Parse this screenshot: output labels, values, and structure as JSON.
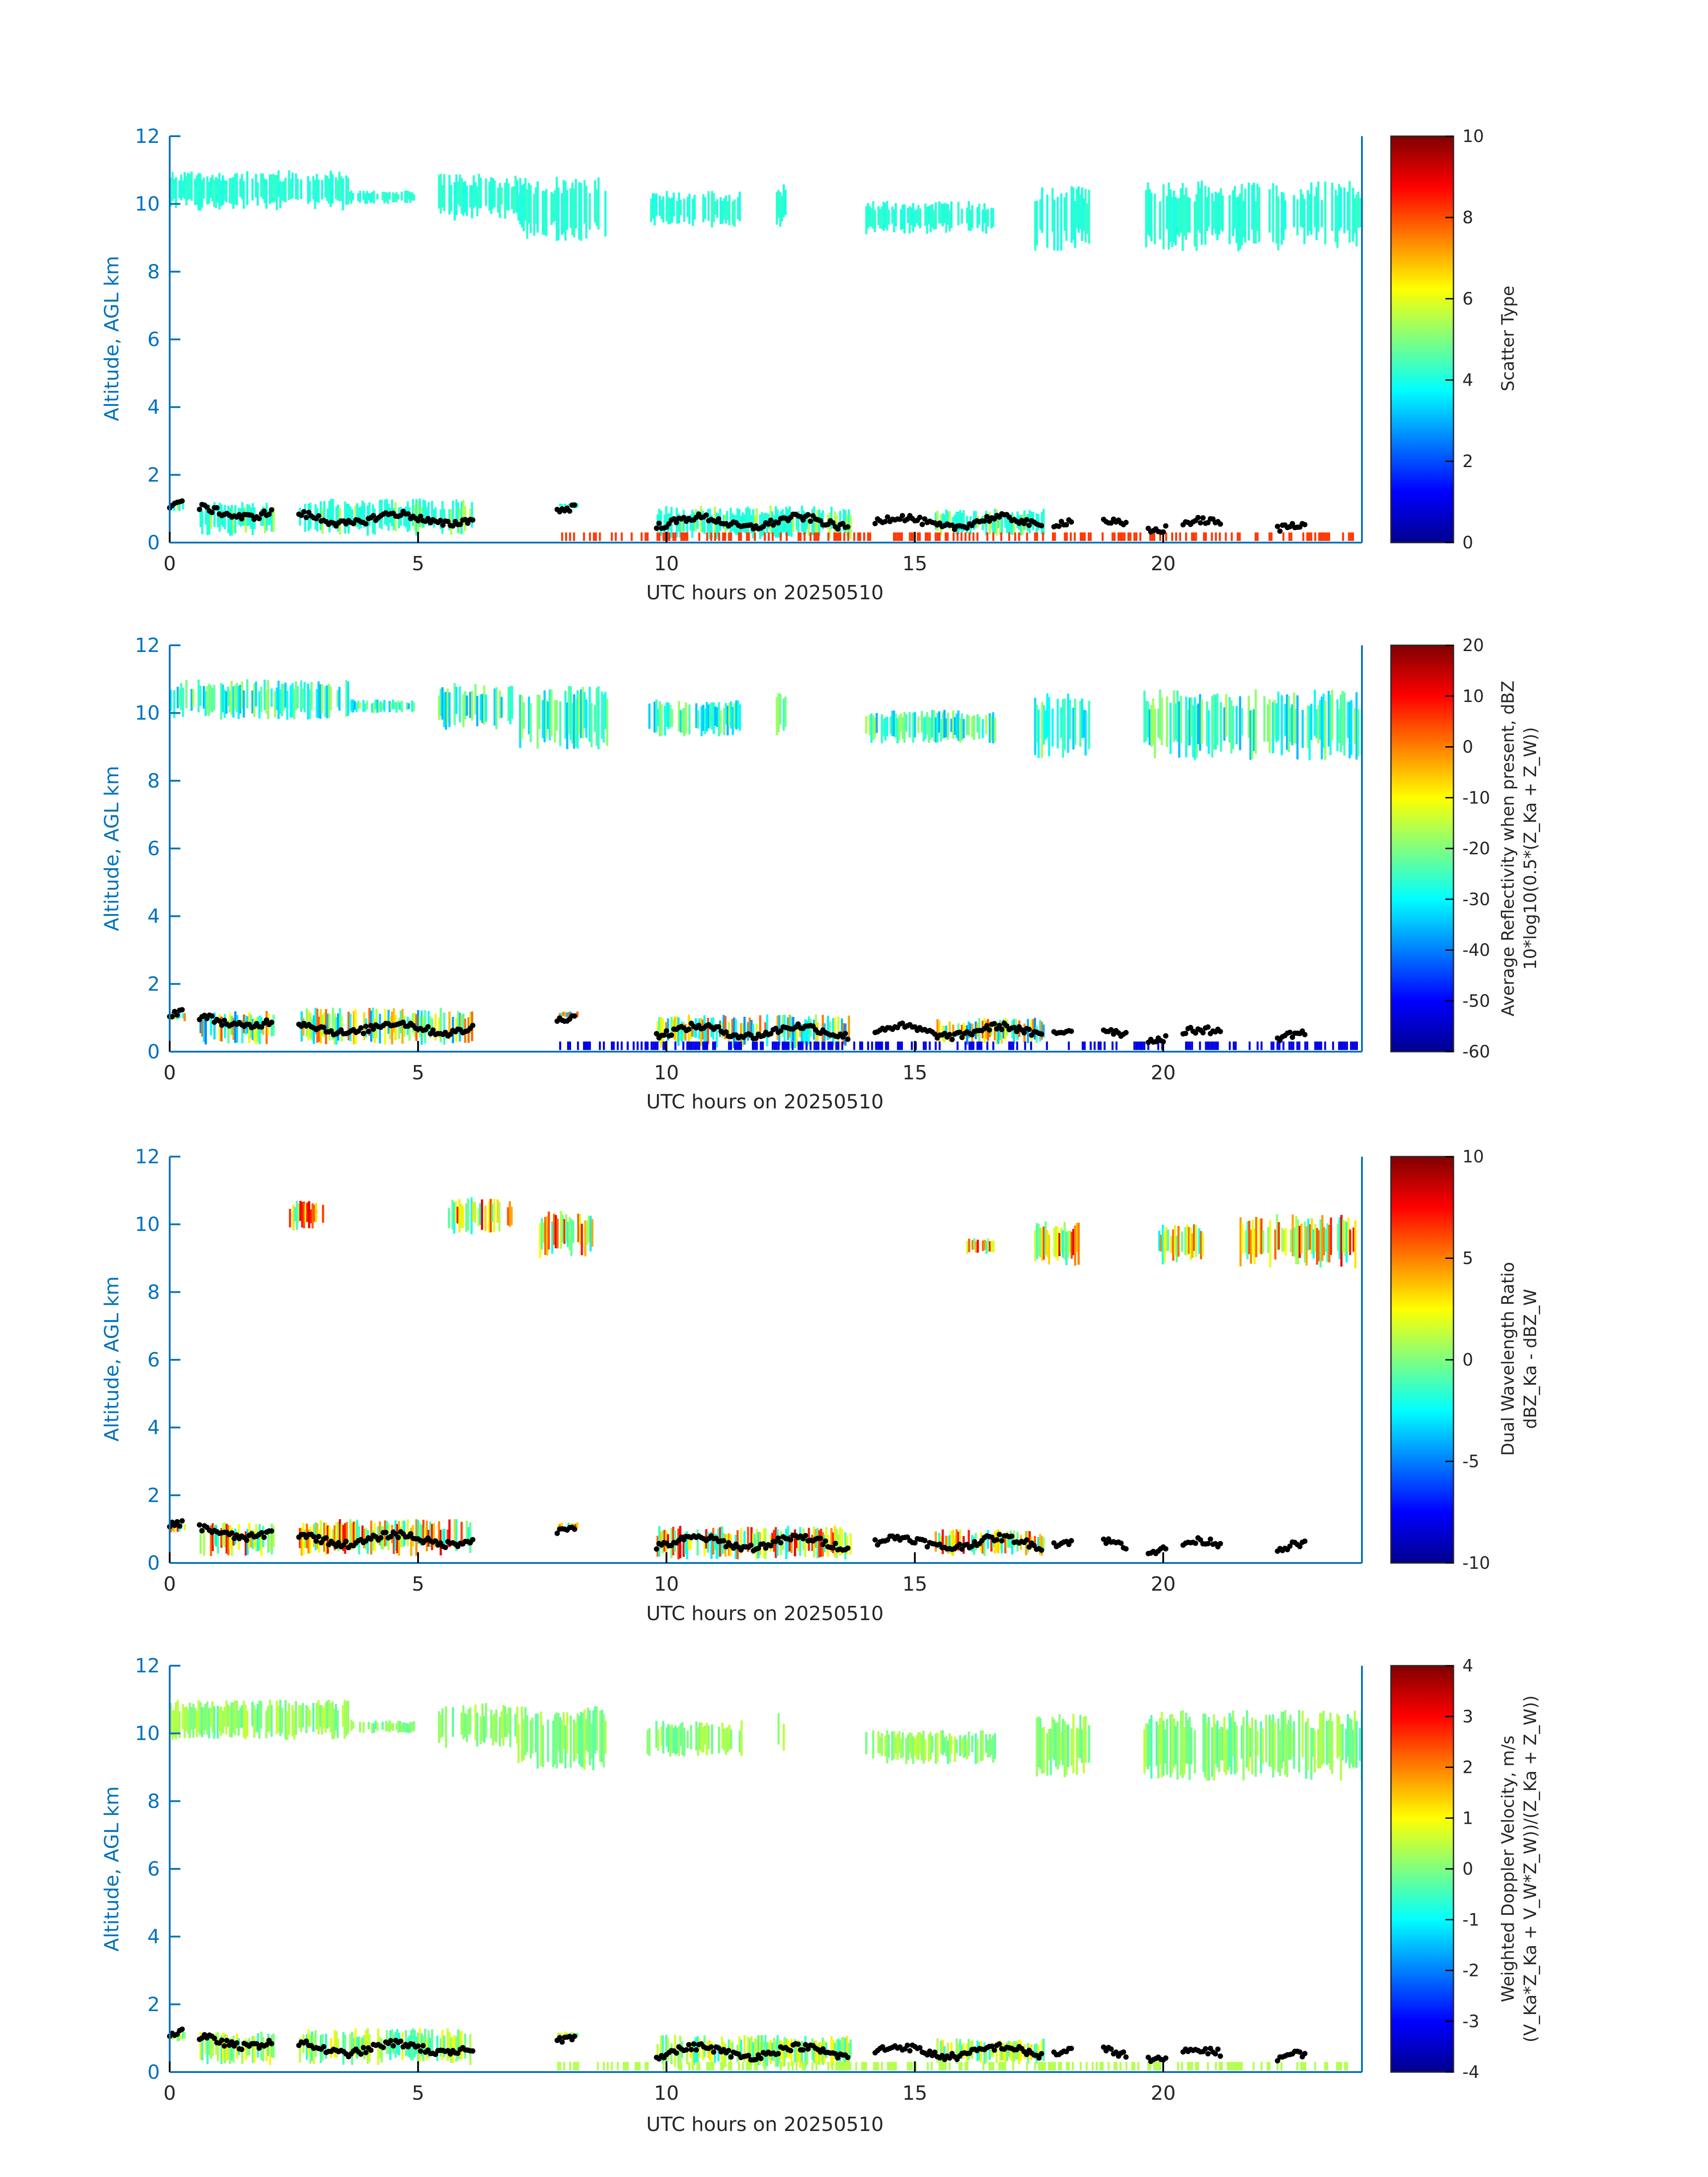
{
  "chart_data": [
    {
      "type": "heatmap",
      "xlabel": "UTC hours on 20250510",
      "ylabel": "Altitude, AGL km",
      "xlim": [
        0,
        24
      ],
      "ylim": [
        0,
        12
      ],
      "xticks": [
        0,
        5,
        10,
        15,
        20
      ],
      "yticks": [
        0,
        2,
        4,
        6,
        8,
        10,
        12
      ],
      "colorbar": {
        "colormap": "jet",
        "range": [
          0,
          10
        ],
        "ticks": [
          0,
          2,
          4,
          6,
          8,
          10
        ],
        "title_lines": [
          "Scatter Type"
        ]
      }
    },
    {
      "type": "heatmap",
      "xlabel": "UTC hours on 20250510",
      "ylabel": "Altitude, AGL km",
      "xlim": [
        0,
        24
      ],
      "ylim": [
        0,
        12
      ],
      "xticks": [
        0,
        5,
        10,
        15,
        20
      ],
      "yticks": [
        0,
        2,
        4,
        6,
        8,
        10,
        12
      ],
      "colorbar": {
        "colormap": "jet",
        "range": [
          -60,
          20
        ],
        "ticks": [
          -60,
          -50,
          -40,
          -30,
          -20,
          -10,
          0,
          10,
          20
        ],
        "title_lines": [
          "Average Reflectivity when present, dBZ",
          "10*log10(0.5*(Z_Ka + Z_W))"
        ]
      }
    },
    {
      "type": "heatmap",
      "xlabel": "UTC hours on 20250510",
      "ylabel": "Altitude, AGL km",
      "xlim": [
        0,
        24
      ],
      "ylim": [
        0,
        12
      ],
      "xticks": [
        0,
        5,
        10,
        15,
        20
      ],
      "yticks": [
        0,
        2,
        4,
        6,
        8,
        10,
        12
      ],
      "colorbar": {
        "colormap": "jet",
        "range": [
          -10,
          10
        ],
        "ticks": [
          -10,
          -5,
          0,
          5,
          10
        ],
        "title_lines": [
          "Dual Wavelength Ratio",
          "dBZ_Ka - dBZ_W"
        ]
      }
    },
    {
      "type": "heatmap",
      "xlabel": "UTC hours on 20250510",
      "ylabel": "Altitude, AGL km",
      "xlim": [
        0,
        24
      ],
      "ylim": [
        0,
        12
      ],
      "xticks": [
        0,
        5,
        10,
        15,
        20
      ],
      "yticks": [
        0,
        2,
        4,
        6,
        8,
        10,
        12
      ],
      "colorbar": {
        "colormap": "jet",
        "range": [
          -4,
          4
        ],
        "ticks": [
          -4,
          -3,
          -2,
          -1,
          0,
          1,
          2,
          3,
          4
        ],
        "title_lines": [
          "Weighted Doppler Velocity, m/s",
          "(V_Ka*Z_Ka + V_W*Z_W))/(Z_Ka + Z_W))"
        ]
      }
    }
  ],
  "cloud_regions": {
    "upper": [
      {
        "t0": 0.0,
        "t1": 3.6,
        "zlo": 9.8,
        "zhi": 11.0
      },
      {
        "t0": 3.6,
        "t1": 4.9,
        "zlo": 10.0,
        "zhi": 10.4
      },
      {
        "t0": 5.4,
        "t1": 7.0,
        "zlo": 9.5,
        "zhi": 10.9
      },
      {
        "t0": 7.0,
        "t1": 8.8,
        "zlo": 8.9,
        "zhi": 10.8
      },
      {
        "t0": 9.6,
        "t1": 11.5,
        "zlo": 9.3,
        "zhi": 10.4
      },
      {
        "t0": 12.2,
        "t1": 12.4,
        "zlo": 9.3,
        "zhi": 10.6
      },
      {
        "t0": 14.0,
        "t1": 16.6,
        "zlo": 9.1,
        "zhi": 10.1
      },
      {
        "t0": 17.4,
        "t1": 18.5,
        "zlo": 8.6,
        "zhi": 10.6
      },
      {
        "t0": 19.6,
        "t1": 24.0,
        "zlo": 8.6,
        "zhi": 10.7
      }
    ],
    "lower": [
      {
        "t0": 0.0,
        "t1": 0.3,
        "zlo": 0.9,
        "zhi": 1.2
      },
      {
        "t0": 0.6,
        "t1": 2.1,
        "zlo": 0.2,
        "zhi": 1.2
      },
      {
        "t0": 2.6,
        "t1": 6.1,
        "zlo": 0.2,
        "zhi": 1.3
      },
      {
        "t0": 7.8,
        "t1": 8.2,
        "zlo": 1.0,
        "zhi": 1.2
      },
      {
        "t0": 9.8,
        "t1": 13.7,
        "zlo": 0.1,
        "zhi": 1.1
      },
      {
        "t0": 15.4,
        "t1": 17.6,
        "zlo": 0.2,
        "zhi": 1.0
      }
    ],
    "dwr_upper": [
      {
        "t0": 2.4,
        "t1": 3.1,
        "zlo": 9.8,
        "zhi": 10.7
      },
      {
        "t0": 5.6,
        "t1": 6.9,
        "zlo": 9.7,
        "zhi": 10.8
      },
      {
        "t0": 7.4,
        "t1": 8.5,
        "zlo": 9.0,
        "zhi": 10.4
      },
      {
        "t0": 16.0,
        "t1": 16.6,
        "zlo": 9.1,
        "zhi": 9.6
      },
      {
        "t0": 17.4,
        "t1": 18.3,
        "zlo": 8.7,
        "zhi": 10.1
      },
      {
        "t0": 19.9,
        "t1": 20.8,
        "zlo": 8.8,
        "zhi": 10.0
      },
      {
        "t0": 21.5,
        "t1": 24.0,
        "zlo": 8.7,
        "zhi": 10.3
      }
    ]
  }
}
